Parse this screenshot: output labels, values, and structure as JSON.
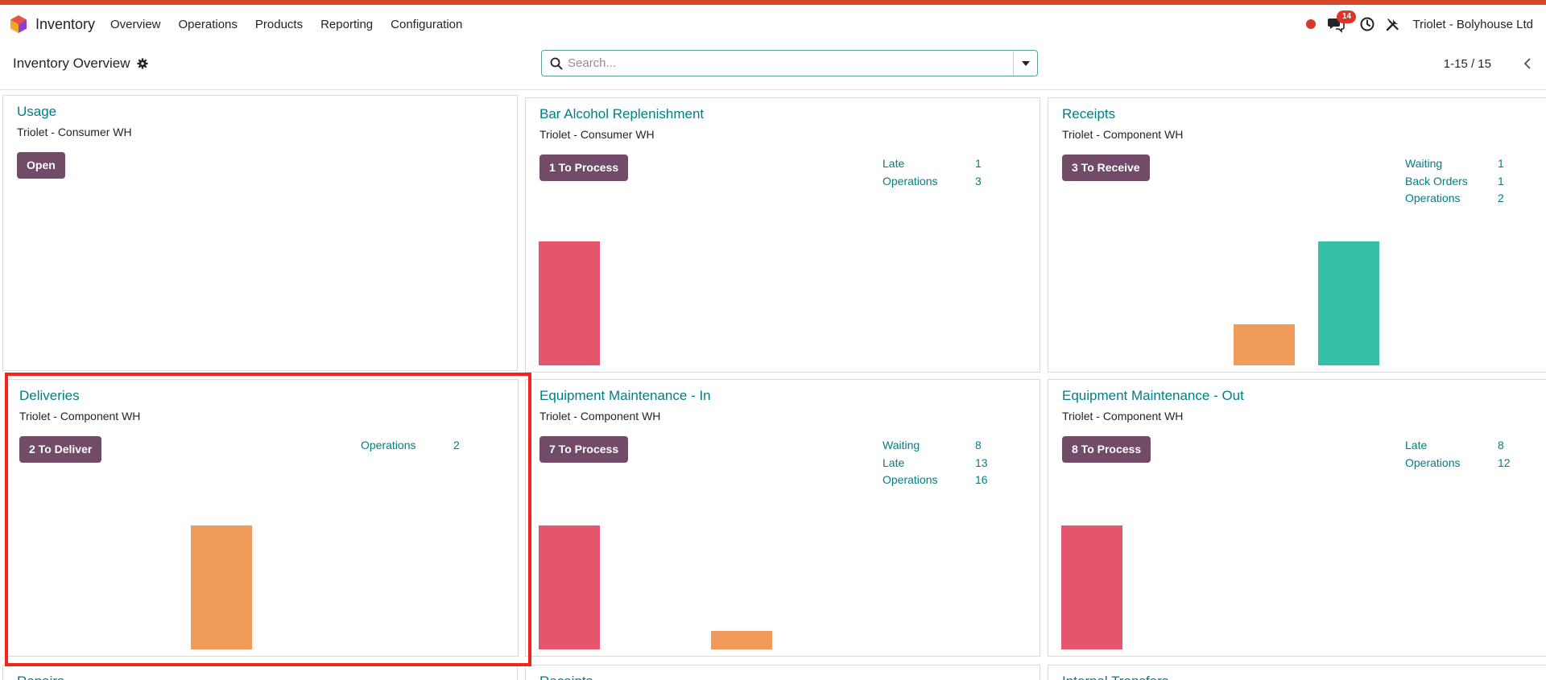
{
  "navbar": {
    "app_name": "Inventory",
    "menu": [
      "Overview",
      "Operations",
      "Products",
      "Reporting",
      "Configuration"
    ],
    "chat_badge": "14",
    "company": "Triolet - Bolyhouse Ltd",
    "colors": {
      "strip": "#d9472b",
      "badge": "#d9372b"
    }
  },
  "control": {
    "title": "Inventory Overview",
    "search_placeholder": "Search...",
    "pager": "1-15 / 15"
  },
  "cards": [
    {
      "title": "Usage",
      "subtitle": "Triolet - Consumer WH",
      "button": "Open",
      "stats": [],
      "bars": []
    },
    {
      "title": "Bar Alcohol Replenishment",
      "subtitle": "Triolet - Consumer WH",
      "button": "1 To Process",
      "stats": [
        {
          "label": "Late",
          "value": "1"
        },
        {
          "label": "Operations",
          "value": "3"
        }
      ],
      "bars": [
        {
          "slot": 0,
          "color": "red",
          "value": 1
        }
      ]
    },
    {
      "title": "Receipts",
      "subtitle": "Triolet - Component WH",
      "button": "3 To Receive",
      "stats": [
        {
          "label": "Waiting",
          "value": "1"
        },
        {
          "label": "Back Orders",
          "value": "1"
        },
        {
          "label": "Operations",
          "value": "2"
        }
      ],
      "bars": [
        {
          "slot": 3,
          "color": "orange",
          "value": 0.33
        },
        {
          "slot": 4,
          "color": "teal",
          "value": 1
        }
      ]
    },
    {
      "title": "Deliveries",
      "subtitle": "Triolet - Component WH",
      "button": "2 To Deliver",
      "stats": [
        {
          "label": "Operations",
          "value": "2"
        }
      ],
      "bars": [
        {
          "slot": 2,
          "color": "orange",
          "value": 1
        }
      ]
    },
    {
      "title": "Equipment Maintenance - In",
      "subtitle": "Triolet - Component WH",
      "button": "7 To Process",
      "stats": [
        {
          "label": "Waiting",
          "value": "8"
        },
        {
          "label": "Late",
          "value": "13"
        },
        {
          "label": "Operations",
          "value": "16"
        }
      ],
      "bars": [
        {
          "slot": 0,
          "color": "red",
          "value": 1
        },
        {
          "slot": 2,
          "color": "orange",
          "value": 0.15
        }
      ]
    },
    {
      "title": "Equipment Maintenance - Out",
      "subtitle": "Triolet - Component WH",
      "button": "8 To Process",
      "stats": [
        {
          "label": "Late",
          "value": "8"
        },
        {
          "label": "Operations",
          "value": "12"
        }
      ],
      "bars": [
        {
          "slot": 0,
          "color": "red",
          "value": 1
        }
      ]
    },
    {
      "title": "Repairs",
      "subtitle": "",
      "button": "",
      "stats": [],
      "bars": []
    },
    {
      "title": "Receipts",
      "subtitle": "",
      "button": "",
      "stats": [],
      "bars": []
    },
    {
      "title": "Internal Transfers",
      "subtitle": "",
      "button": "",
      "stats": [],
      "bars": []
    }
  ]
}
